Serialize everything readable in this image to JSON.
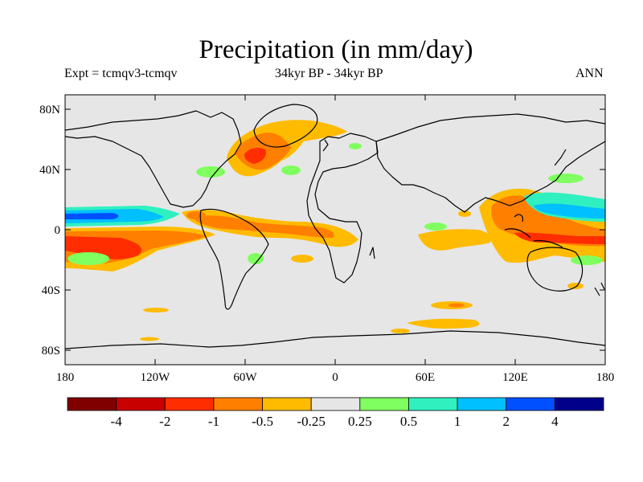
{
  "title": "Precipitation (in mm/day)",
  "subtitle_left": "Expt = tcmqv3-tcmqv",
  "subtitle_center": "34kyr BP - 34kyr BP",
  "subtitle_right": "ANN",
  "y_ticks": [
    "80N",
    "40N",
    "0",
    "40S",
    "80S"
  ],
  "x_ticks": [
    "180",
    "120W",
    "60W",
    "0",
    "60E",
    "120E",
    "180"
  ],
  "colorbar": {
    "colors": [
      "#800000",
      "#c80000",
      "#ff2d00",
      "#ff7f00",
      "#ffbb00",
      "#e6e6e6",
      "#80ff60",
      "#30f0c0",
      "#00c0ff",
      "#0050ff",
      "#00008a"
    ],
    "labels": [
      "-4",
      "-2",
      "-1",
      "-0.5",
      "-0.25",
      "0.25",
      "0.5",
      "1",
      "2",
      "4"
    ]
  },
  "colors": {
    "background": "#e6e6e6",
    "coast": "#000000"
  }
}
